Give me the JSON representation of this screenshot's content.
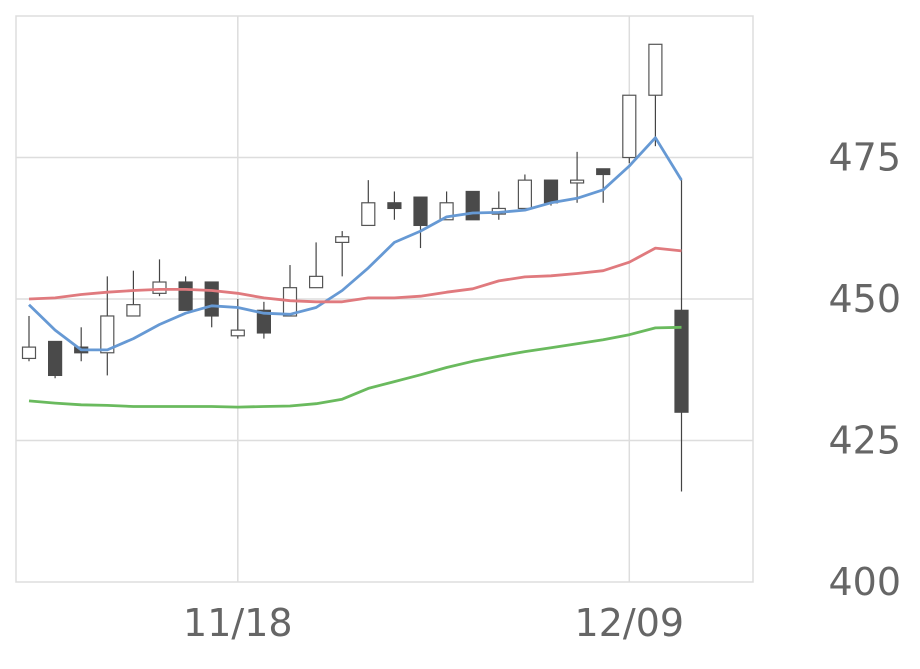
{
  "chart_data": {
    "type": "candlestick",
    "x_tick_labels": [
      {
        "label": "11/18",
        "index": 8
      },
      {
        "label": "12/09",
        "index": 23
      }
    ],
    "y_ticks": [
      400,
      425,
      450,
      475
    ],
    "ylim": [
      400,
      500
    ],
    "y_axis_side": "right",
    "grid": true,
    "candles": [
      {
        "open": 439.5,
        "high": 447.0,
        "low": 439.0,
        "close": 441.5
      },
      {
        "open": 442.5,
        "high": 442.5,
        "low": 436.0,
        "close": 436.5
      },
      {
        "open": 441.5,
        "high": 445.0,
        "low": 439.0,
        "close": 440.5
      },
      {
        "open": 440.5,
        "high": 454.0,
        "low": 436.5,
        "close": 447.0
      },
      {
        "open": 447.0,
        "high": 455.0,
        "low": 447.0,
        "close": 449.0
      },
      {
        "open": 451.0,
        "high": 457.0,
        "low": 450.5,
        "close": 453.0
      },
      {
        "open": 453.0,
        "high": 454.0,
        "low": 448.0,
        "close": 448.0
      },
      {
        "open": 453.0,
        "high": 453.0,
        "low": 445.0,
        "close": 447.0
      },
      {
        "open": 443.5,
        "high": 450.0,
        "low": 443.0,
        "close": 444.5
      },
      {
        "open": 448.0,
        "high": 449.5,
        "low": 443.0,
        "close": 444.0
      },
      {
        "open": 447.0,
        "high": 456.0,
        "low": 447.0,
        "close": 452.0
      },
      {
        "open": 452.0,
        "high": 460.0,
        "low": 452.0,
        "close": 454.0
      },
      {
        "open": 460.0,
        "high": 462.0,
        "low": 454.0,
        "close": 461.0
      },
      {
        "open": 463.0,
        "high": 471.0,
        "low": 463.0,
        "close": 467.0
      },
      {
        "open": 467.0,
        "high": 469.0,
        "low": 464.0,
        "close": 466.0
      },
      {
        "open": 468.0,
        "high": 468.0,
        "low": 459.0,
        "close": 463.0
      },
      {
        "open": 464.0,
        "high": 469.0,
        "low": 464.0,
        "close": 467.0
      },
      {
        "open": 469.0,
        "high": 469.0,
        "low": 464.0,
        "close": 464.0
      },
      {
        "open": 465.0,
        "high": 469.0,
        "low": 464.0,
        "close": 466.0
      },
      {
        "open": 466.0,
        "high": 472.0,
        "low": 466.0,
        "close": 471.0
      },
      {
        "open": 471.0,
        "high": 471.0,
        "low": 466.5,
        "close": 467.0
      },
      {
        "open": 470.5,
        "high": 476.0,
        "low": 467.0,
        "close": 471.0
      },
      {
        "open": 473.0,
        "high": 473.0,
        "low": 467.0,
        "close": 472.0
      },
      {
        "open": 475.0,
        "high": 486.0,
        "low": 474.0,
        "close": 486.0
      },
      {
        "open": 486.0,
        "high": 495.0,
        "low": 477.0,
        "close": 495.0
      },
      {
        "open": 448.0,
        "high": 471.0,
        "low": 416.0,
        "close": 430.0
      }
    ],
    "series": [
      {
        "color": "#6699d4",
        "values": [
          449.0,
          444.5,
          441.0,
          441.0,
          443.0,
          445.5,
          447.5,
          448.8,
          448.5,
          447.5,
          447.3,
          448.5,
          451.5,
          455.5,
          460.0,
          462.0,
          464.5,
          465.2,
          465.3,
          465.7,
          467.0,
          467.8,
          469.3,
          473.5,
          478.5,
          471.0
        ]
      },
      {
        "color": "#e07a7e",
        "values": [
          450.0,
          450.2,
          450.8,
          451.2,
          451.5,
          451.7,
          451.7,
          451.5,
          451.0,
          450.2,
          449.7,
          449.5,
          449.5,
          450.2,
          450.2,
          450.5,
          451.2,
          451.8,
          453.2,
          453.9,
          454.1,
          454.5,
          455.0,
          456.5,
          459.0,
          458.5
        ]
      },
      {
        "color": "#6aba5e",
        "values": [
          432.0,
          431.6,
          431.3,
          431.2,
          431.0,
          431.0,
          431.0,
          431.0,
          430.9,
          431.0,
          431.1,
          431.5,
          432.3,
          434.2,
          435.4,
          436.6,
          437.9,
          439.0,
          439.9,
          440.7,
          441.4,
          442.1,
          442.8,
          443.7,
          444.9,
          445.0
        ]
      }
    ]
  }
}
